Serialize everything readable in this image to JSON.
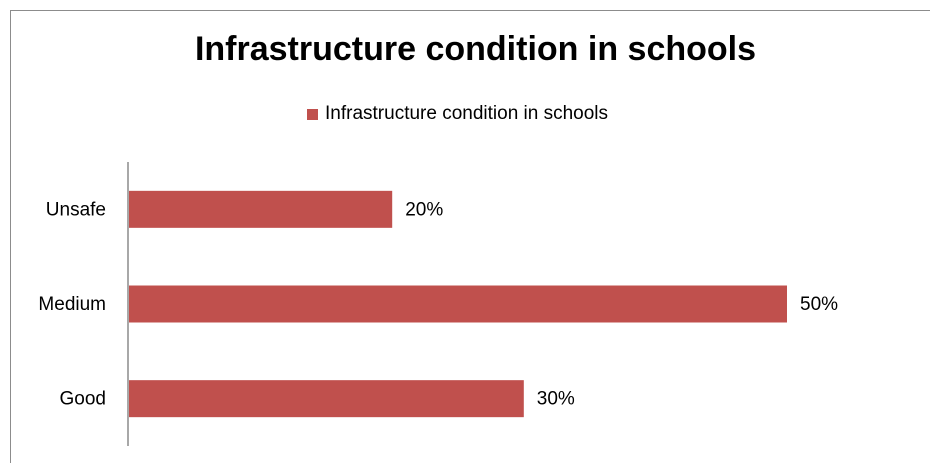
{
  "chart_data": {
    "type": "bar",
    "orientation": "horizontal",
    "title": "Infrastructure condition in schools",
    "categories": [
      "Unsafe",
      "Medium",
      "Good"
    ],
    "series": [
      {
        "name": "Infrastructure condition in schools",
        "values": [
          20,
          50,
          30
        ],
        "labels": [
          "20%",
          "50%",
          "30%"
        ],
        "color": "#c0504d"
      }
    ],
    "xlim": [
      0,
      50
    ],
    "legend_position": "top",
    "grid": false
  }
}
